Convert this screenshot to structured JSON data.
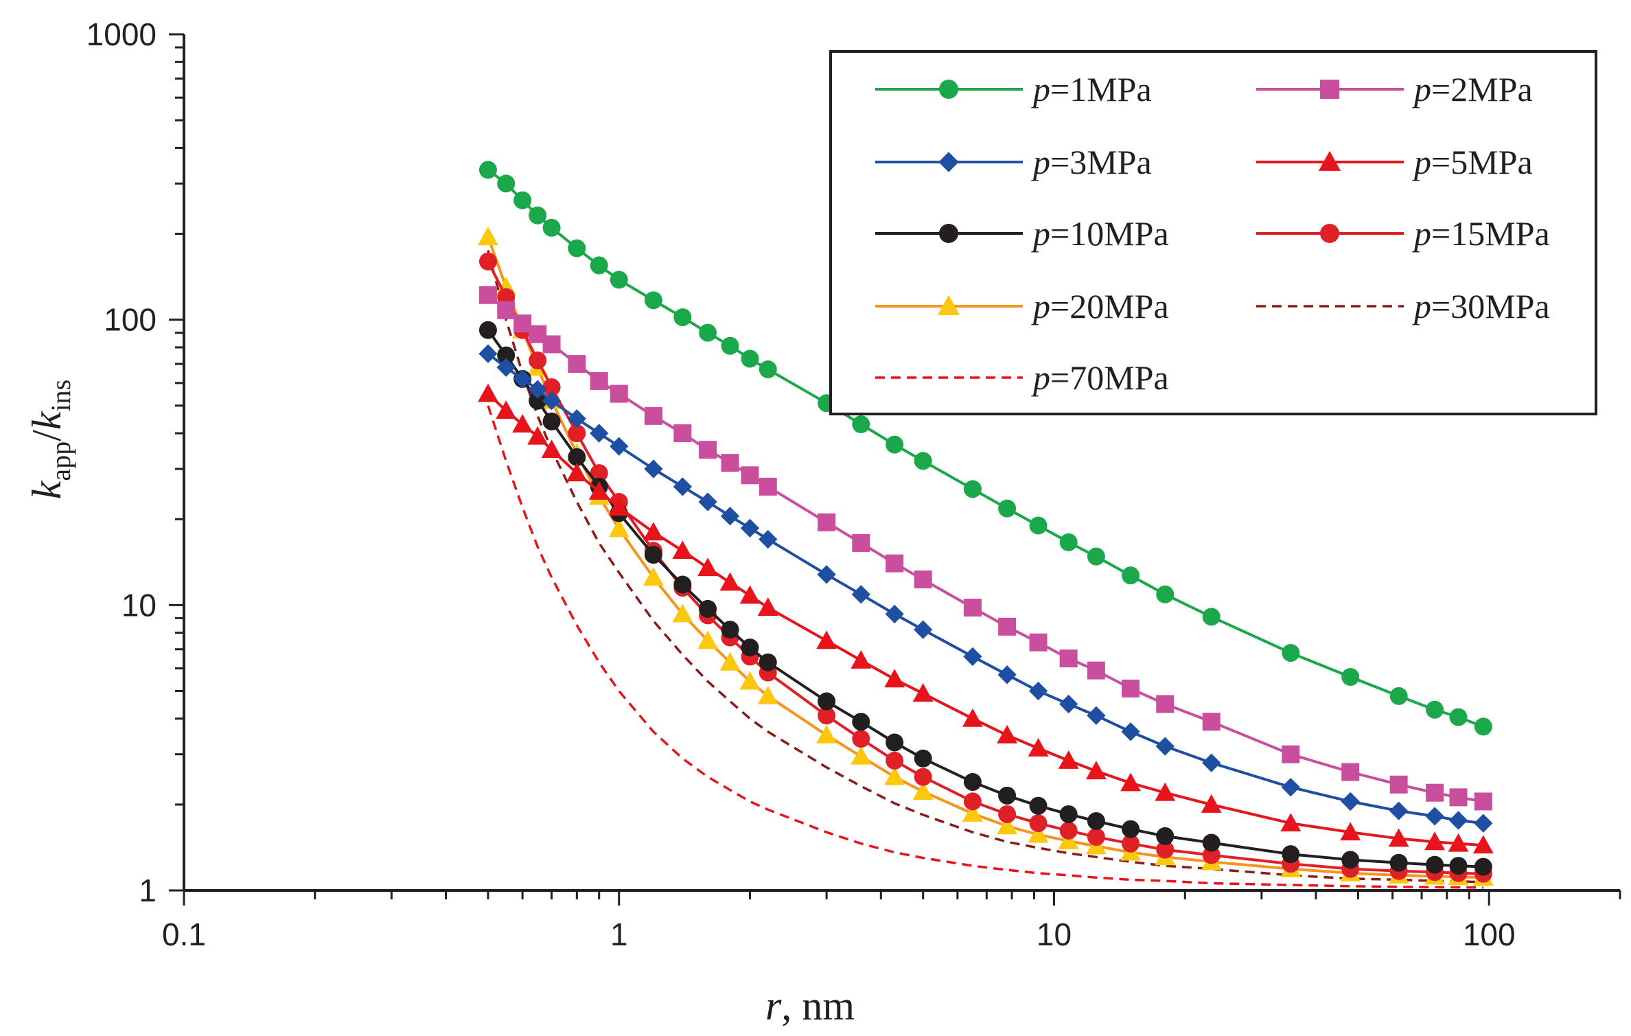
{
  "chart_data": {
    "type": "line",
    "title": "",
    "xscale": "log",
    "yscale": "log",
    "xlim": [
      0.1,
      200
    ],
    "ylim": [
      1,
      1000
    ],
    "x_ticks": [
      0.1,
      1,
      10,
      100
    ],
    "x_tick_labels": [
      "0.1",
      "1",
      "10",
      "100"
    ],
    "y_ticks": [
      1,
      10,
      100,
      1000
    ],
    "y_tick_labels": [
      "1",
      "10",
      "100",
      "1000"
    ],
    "xlabel": {
      "var": "r",
      "rest": ", nm"
    },
    "ylabel": {
      "num": "k",
      "num_sub": "app",
      "den": "k",
      "den_sub": "ins"
    },
    "legend_position": "top-right",
    "series": [
      {
        "name": "p=1MPa",
        "var": "p",
        "label": "=1MPa",
        "color": "#1ba84a",
        "marker": "circle",
        "dash": false,
        "x": [
          0.5,
          0.55,
          0.6,
          0.65,
          0.7,
          0.8,
          0.9,
          1.0,
          1.2,
          1.4,
          1.6,
          1.8,
          2.0,
          2.2,
          3.0,
          3.6,
          4.3,
          5.0,
          6.5,
          7.8,
          9.2,
          10.8,
          12.5,
          15,
          18,
          23,
          35,
          48,
          62,
          75,
          85,
          97
        ],
        "y": [
          335,
          300,
          262,
          232,
          210,
          178,
          155,
          138,
          117,
          102,
          90,
          81,
          73,
          67,
          51,
          43,
          36.5,
          32,
          25.5,
          21.8,
          19,
          16.6,
          14.8,
          12.7,
          10.9,
          9.1,
          6.8,
          5.6,
          4.8,
          4.3,
          4.05,
          3.75
        ]
      },
      {
        "name": "p=2MPa",
        "var": "p",
        "label": "=2MPa",
        "color": "#c94f9e",
        "marker": "square",
        "dash": false,
        "x": [
          0.5,
          0.55,
          0.6,
          0.65,
          0.7,
          0.8,
          0.9,
          1.0,
          1.2,
          1.4,
          1.6,
          1.8,
          2.0,
          2.2,
          3.0,
          3.6,
          4.3,
          5.0,
          6.5,
          7.8,
          9.2,
          10.8,
          12.5,
          15,
          18,
          23,
          35,
          48,
          62,
          75,
          85,
          97
        ],
        "y": [
          122,
          108,
          97,
          89,
          82,
          70,
          61,
          55,
          46,
          40,
          35,
          31.5,
          28.5,
          26,
          19.5,
          16.5,
          14,
          12.3,
          9.8,
          8.4,
          7.4,
          6.5,
          5.9,
          5.1,
          4.5,
          3.9,
          3.0,
          2.6,
          2.35,
          2.2,
          2.12,
          2.05
        ]
      },
      {
        "name": "p=3MPa",
        "var": "p",
        "label": "=3MPa",
        "color": "#1f4fa3",
        "marker": "diamond",
        "dash": false,
        "x": [
          0.5,
          0.55,
          0.6,
          0.65,
          0.7,
          0.8,
          0.9,
          1.0,
          1.2,
          1.4,
          1.6,
          1.8,
          2.0,
          2.2,
          3.0,
          3.6,
          4.3,
          5.0,
          6.5,
          7.8,
          9.2,
          10.8,
          12.5,
          15,
          18,
          23,
          35,
          48,
          62,
          75,
          85,
          97
        ],
        "y": [
          76,
          68,
          62,
          57,
          52,
          45,
          40,
          36,
          30,
          26,
          23,
          20.5,
          18.6,
          17,
          12.8,
          10.9,
          9.3,
          8.2,
          6.6,
          5.7,
          5.0,
          4.5,
          4.1,
          3.6,
          3.2,
          2.8,
          2.3,
          2.05,
          1.9,
          1.82,
          1.76,
          1.72
        ]
      },
      {
        "name": "p=5MPa",
        "var": "p",
        "label": "=5MPa",
        "color": "#e8141c",
        "marker": "triangle",
        "dash": false,
        "x": [
          0.5,
          0.55,
          0.6,
          0.65,
          0.7,
          0.8,
          0.9,
          1.0,
          1.2,
          1.4,
          1.6,
          1.8,
          2.0,
          2.2,
          3.0,
          3.6,
          4.3,
          5.0,
          6.5,
          7.8,
          9.2,
          10.8,
          12.5,
          15,
          18,
          23,
          35,
          48,
          62,
          75,
          85,
          97
        ],
        "y": [
          55,
          48,
          43,
          39,
          35,
          29,
          25,
          22,
          18,
          15.5,
          13.5,
          12,
          10.8,
          9.8,
          7.5,
          6.4,
          5.5,
          4.9,
          4.0,
          3.5,
          3.15,
          2.85,
          2.62,
          2.38,
          2.2,
          2.0,
          1.72,
          1.6,
          1.52,
          1.48,
          1.46,
          1.44
        ]
      },
      {
        "name": "p=10MPa",
        "var": "p",
        "label": "=10MPa",
        "color": "#231f20",
        "marker": "circle",
        "dash": false,
        "x": [
          0.5,
          0.55,
          0.6,
          0.65,
          0.7,
          0.8,
          0.9,
          1.0,
          1.2,
          1.4,
          1.6,
          1.8,
          2.0,
          2.2,
          3.0,
          3.6,
          4.3,
          5.0,
          6.5,
          7.8,
          9.2,
          10.8,
          12.5,
          15,
          18,
          23,
          35,
          48,
          62,
          75,
          85,
          97
        ],
        "y": [
          92,
          75,
          62,
          52,
          44,
          33,
          26,
          21,
          15,
          11.8,
          9.7,
          8.2,
          7.1,
          6.3,
          4.6,
          3.9,
          3.3,
          2.9,
          2.4,
          2.15,
          1.98,
          1.85,
          1.75,
          1.64,
          1.55,
          1.47,
          1.34,
          1.28,
          1.25,
          1.23,
          1.22,
          1.21
        ]
      },
      {
        "name": "p=15MPa",
        "var": "p",
        "label": "=15MPa",
        "color": "#e02027",
        "marker": "circle",
        "dash": false,
        "x": [
          0.5,
          0.55,
          0.6,
          0.65,
          0.7,
          0.8,
          0.9,
          1.0,
          1.2,
          1.4,
          1.6,
          1.8,
          2.0,
          2.2,
          3.0,
          3.6,
          4.3,
          5.0,
          6.5,
          7.8,
          9.2,
          10.8,
          12.5,
          15,
          18,
          23,
          35,
          48,
          62,
          75,
          85,
          97
        ],
        "y": [
          160,
          120,
          92,
          72,
          58,
          40,
          29,
          23,
          15.5,
          11.5,
          9.2,
          7.7,
          6.6,
          5.8,
          4.1,
          3.4,
          2.85,
          2.5,
          2.05,
          1.85,
          1.72,
          1.62,
          1.54,
          1.46,
          1.39,
          1.33,
          1.24,
          1.19,
          1.17,
          1.16,
          1.15,
          1.145
        ]
      },
      {
        "name": "p=20MPa",
        "var": "p",
        "label": "=20MPa",
        "color": "#f7941e",
        "marker": "triangle",
        "dash": false,
        "marker_color": "#fcc70f",
        "x": [
          0.5,
          0.55,
          0.6,
          0.65,
          0.7,
          0.8,
          0.9,
          1.0,
          1.2,
          1.4,
          1.6,
          1.8,
          2.0,
          2.2,
          3.0,
          3.6,
          4.3,
          5.0,
          6.5,
          7.8,
          9.2,
          10.8,
          12.5,
          15,
          18,
          23,
          35,
          48,
          62,
          75,
          85,
          97
        ],
        "y": [
          195,
          130,
          92,
          68,
          52,
          34,
          24,
          18.5,
          12.5,
          9.3,
          7.5,
          6.3,
          5.4,
          4.8,
          3.5,
          2.95,
          2.5,
          2.22,
          1.86,
          1.68,
          1.57,
          1.49,
          1.43,
          1.36,
          1.31,
          1.26,
          1.19,
          1.15,
          1.13,
          1.12,
          1.115,
          1.11
        ]
      },
      {
        "name": "p=30MPa",
        "var": "p",
        "label": "=30MPa",
        "color": "#8b1a1a",
        "marker": "none",
        "dash": true,
        "x": [
          0.5,
          0.55,
          0.6,
          0.65,
          0.7,
          0.8,
          0.9,
          1.0,
          1.2,
          1.4,
          1.6,
          1.8,
          2.0,
          2.2,
          3.0,
          3.6,
          4.3,
          5.0,
          6.5,
          7.8,
          9.2,
          10.8,
          12.5,
          15,
          18,
          23,
          35,
          48,
          62,
          75,
          85,
          97
        ],
        "y": [
          175,
          100,
          65,
          46,
          35,
          23,
          16.5,
          13,
          8.8,
          6.7,
          5.4,
          4.6,
          4.0,
          3.6,
          2.7,
          2.32,
          2.02,
          1.84,
          1.6,
          1.48,
          1.41,
          1.35,
          1.31,
          1.26,
          1.22,
          1.19,
          1.13,
          1.1,
          1.09,
          1.08,
          1.075,
          1.07
        ]
      },
      {
        "name": "p=70MPa",
        "var": "p",
        "label": "=70MPa",
        "color": "#e8141c",
        "marker": "none",
        "dash": true,
        "x": [
          0.5,
          0.55,
          0.6,
          0.65,
          0.7,
          0.8,
          0.9,
          1.0,
          1.2,
          1.4,
          1.6,
          1.8,
          2.0,
          2.2,
          3.0,
          3.6,
          4.3,
          5.0,
          6.5,
          7.8,
          9.2,
          10.8,
          12.5,
          15,
          18,
          23,
          35,
          48,
          62,
          75,
          85,
          97
        ],
        "y": [
          50,
          32,
          22,
          16,
          12.5,
          8.5,
          6.3,
          5.0,
          3.6,
          2.9,
          2.5,
          2.25,
          2.05,
          1.92,
          1.6,
          1.46,
          1.36,
          1.3,
          1.22,
          1.18,
          1.15,
          1.13,
          1.11,
          1.09,
          1.08,
          1.06,
          1.045,
          1.035,
          1.03,
          1.027,
          1.025,
          1.023
        ]
      }
    ]
  }
}
